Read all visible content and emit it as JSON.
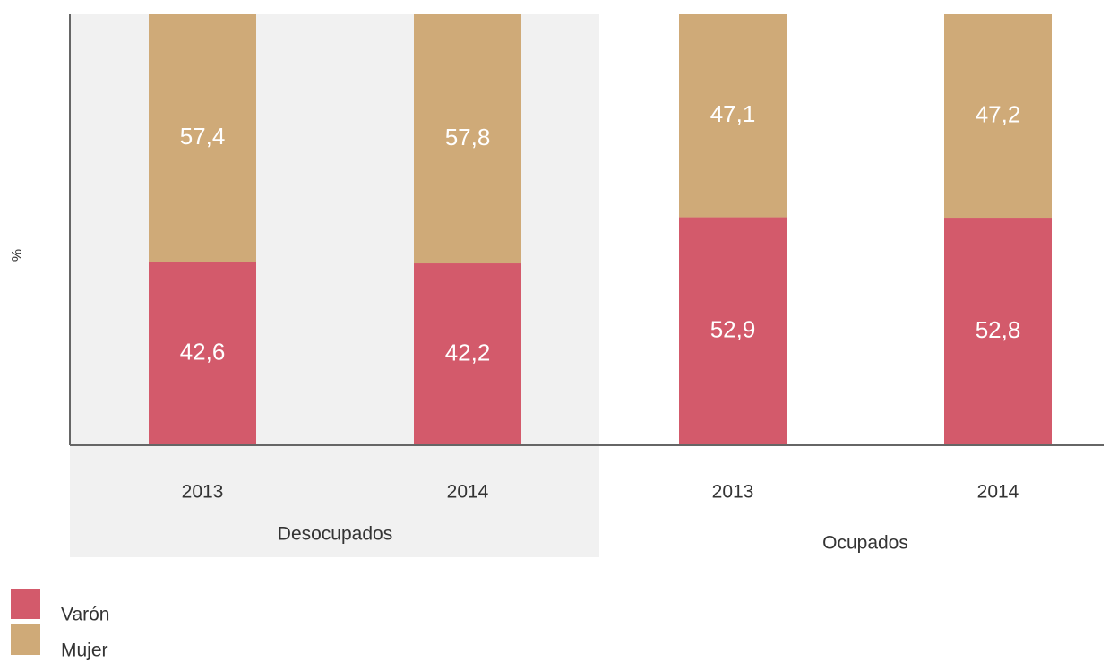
{
  "chart_data": {
    "type": "stacked_bar",
    "y_label": "%",
    "categories": [
      "2013",
      "2014",
      "2013",
      "2014"
    ],
    "groups": [
      "Desocupados",
      "Ocupados"
    ],
    "ylim": [
      0,
      100
    ],
    "series": [
      {
        "name": "Varón",
        "color": "#d35a6b",
        "values": [
          42.6,
          42.2,
          52.9,
          52.8
        ],
        "value_labels": [
          "42,6",
          "42,2",
          "52,9",
          "52,8"
        ]
      },
      {
        "name": "Mujer",
        "color": "#cfaa78",
        "values": [
          57.4,
          57.8,
          47.1,
          47.2
        ],
        "value_labels": [
          "57,4",
          "57,8",
          "47,1",
          "47,2"
        ]
      }
    ]
  }
}
